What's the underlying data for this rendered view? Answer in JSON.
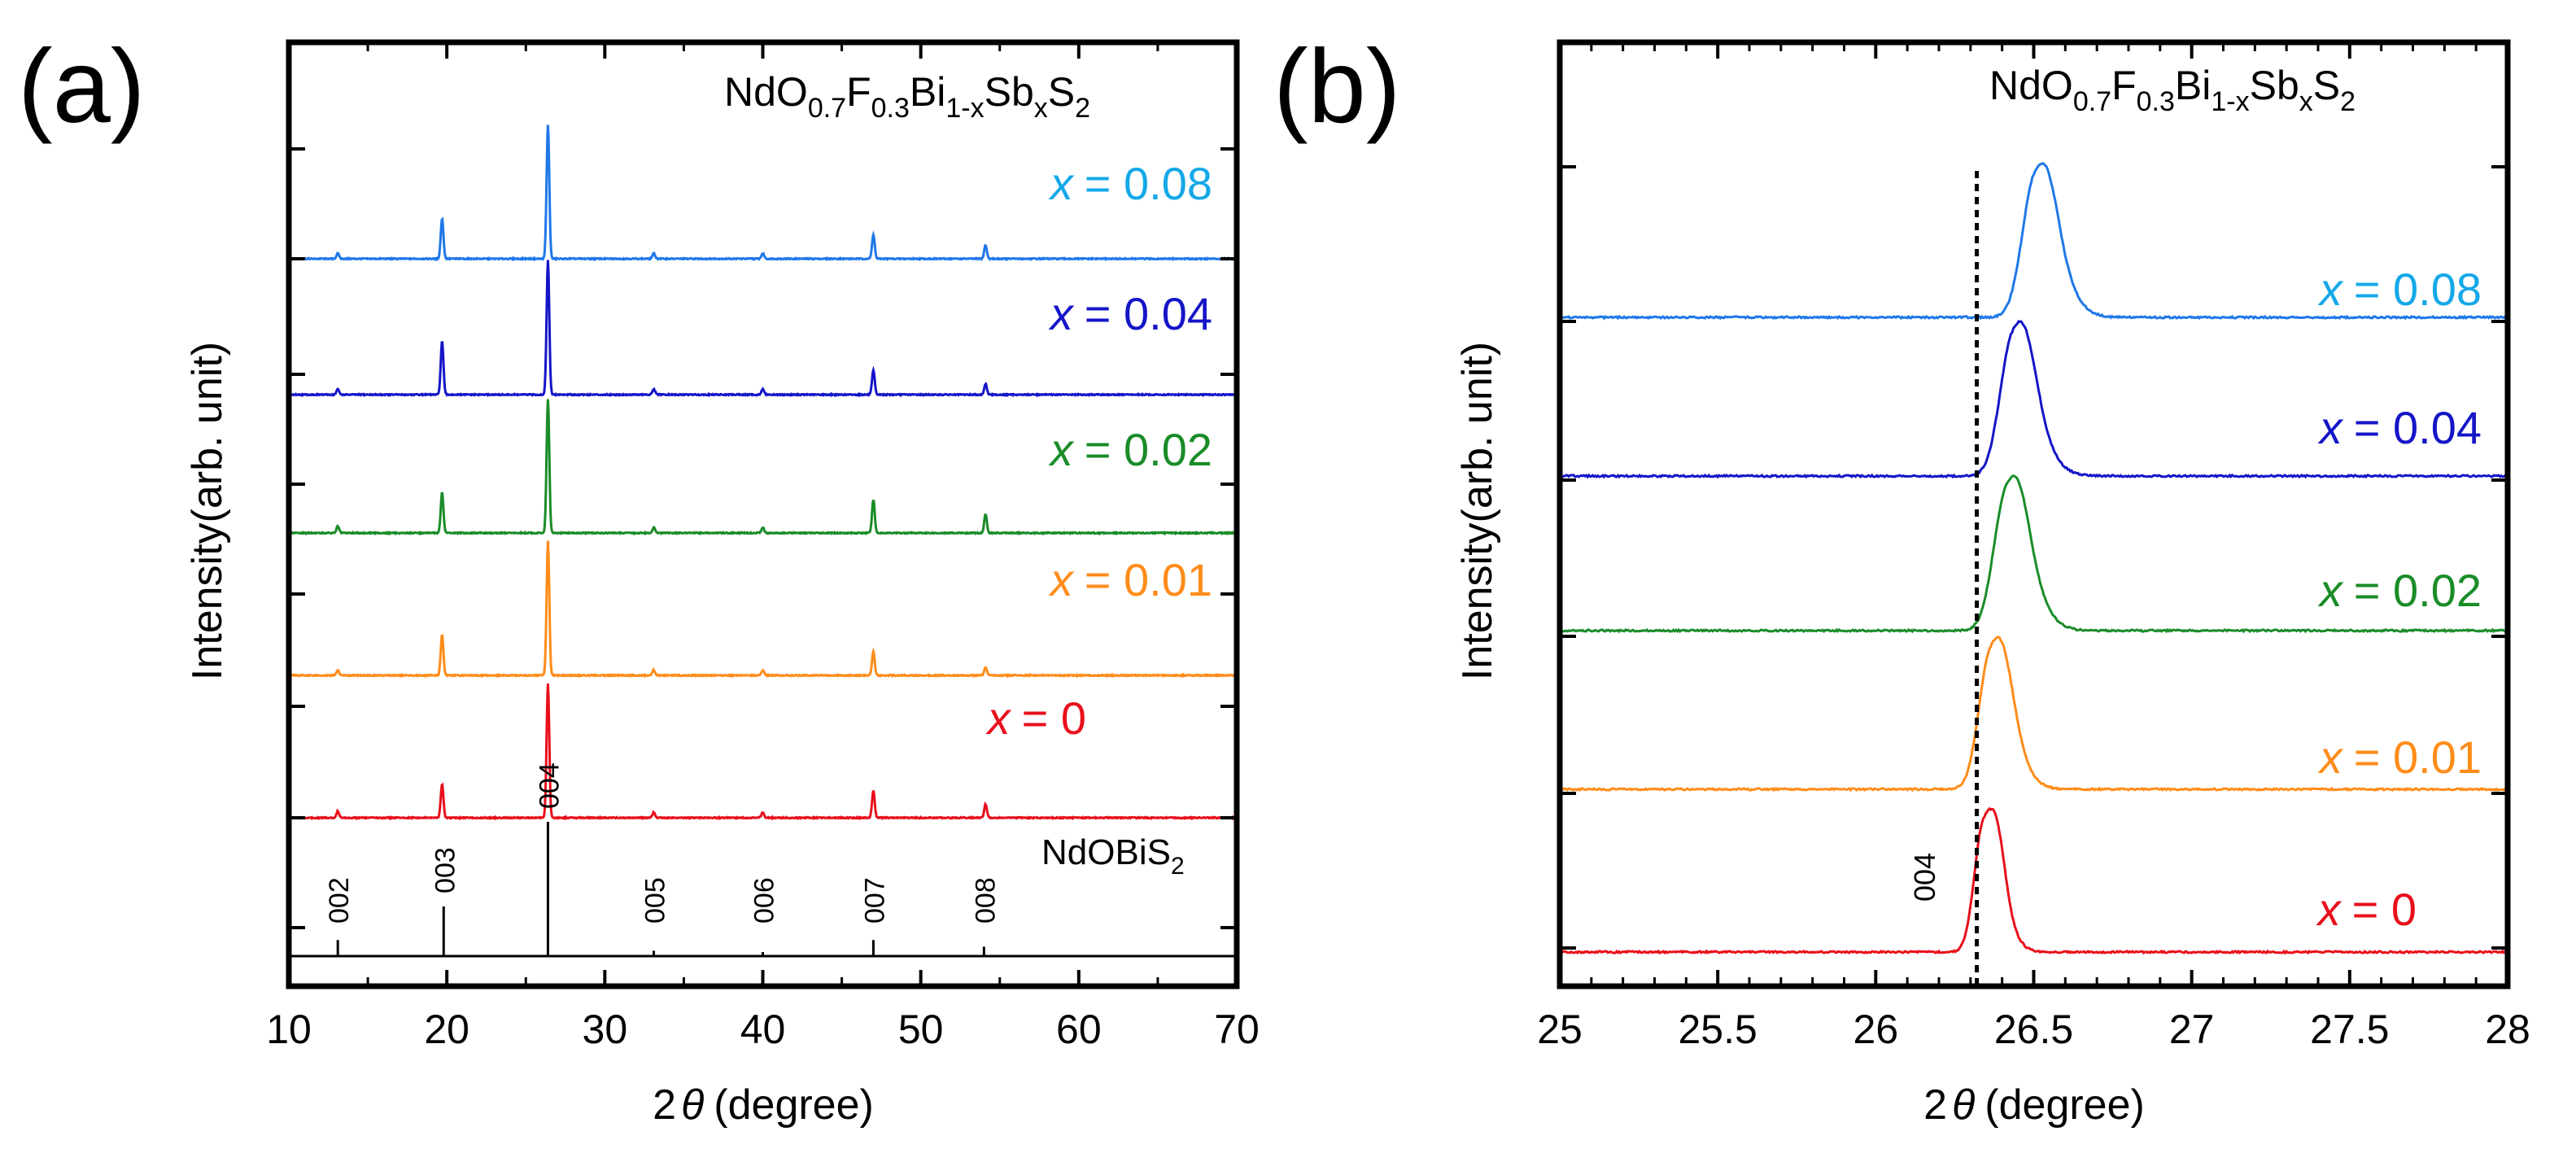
{
  "colors": {
    "axis": "#000000",
    "x0": "#e8101c",
    "x001": "#ff8c1a",
    "x002": "#1a8c28",
    "x004": "#1515c8",
    "x008": "#1f78e8",
    "label008": "#14a8e8",
    "reference": "#000000"
  },
  "chart_data": [
    {
      "panel": "(a)",
      "type": "line",
      "xlabel": "2θ (degree)",
      "xlabel_symbol": "θ",
      "ylabel": "Intensity(arb. unit)",
      "xlim": [
        10,
        70
      ],
      "xticks": [
        10,
        20,
        30,
        40,
        50,
        60,
        70
      ],
      "formula": {
        "base": "NdO",
        "s1": "0.7",
        "p2": "F",
        "s2": "0.3",
        "p3": "Bi",
        "s3": "1-x",
        "p4": "Sb",
        "s4": "x",
        "p5": "S",
        "s5": "2"
      },
      "series": [
        {
          "name": "x = 0.08",
          "var": "x",
          "value": "= 0.08",
          "color_key": "x008",
          "peaks": [
            [
              13.1,
              0.04
            ],
            [
              19.7,
              0.3
            ],
            [
              26.4,
              1.0
            ],
            [
              33.1,
              0.04
            ],
            [
              40.0,
              0.04
            ],
            [
              47.0,
              0.18
            ],
            [
              54.1,
              0.1
            ]
          ]
        },
        {
          "name": "x = 0.04",
          "var": "x",
          "value": "= 0.04",
          "color_key": "x004",
          "peaks": [
            [
              13.1,
              0.04
            ],
            [
              19.7,
              0.4
            ],
            [
              26.4,
              1.0
            ],
            [
              33.1,
              0.04
            ],
            [
              40.0,
              0.04
            ],
            [
              47.0,
              0.18
            ],
            [
              54.1,
              0.08
            ]
          ]
        },
        {
          "name": "x = 0.02",
          "var": "x",
          "value": "= 0.02",
          "color_key": "x002",
          "peaks": [
            [
              13.1,
              0.05
            ],
            [
              19.7,
              0.3
            ],
            [
              26.4,
              1.0
            ],
            [
              33.1,
              0.04
            ],
            [
              40.0,
              0.04
            ],
            [
              47.0,
              0.25
            ],
            [
              54.1,
              0.14
            ]
          ]
        },
        {
          "name": "x = 0.01",
          "var": "x",
          "value": "= 0.01",
          "color_key": "x001",
          "peaks": [
            [
              13.1,
              0.04
            ],
            [
              19.7,
              0.3
            ],
            [
              26.4,
              1.0
            ],
            [
              33.1,
              0.04
            ],
            [
              40.0,
              0.04
            ],
            [
              47.0,
              0.18
            ],
            [
              54.1,
              0.06
            ]
          ]
        },
        {
          "name": "x = 0",
          "var": "x",
          "value": "= 0",
          "color_key": "x0",
          "peaks": [
            [
              13.1,
              0.05
            ],
            [
              19.7,
              0.25
            ],
            [
              26.4,
              1.0
            ],
            [
              33.1,
              0.04
            ],
            [
              40.0,
              0.04
            ],
            [
              47.0,
              0.2
            ],
            [
              54.1,
              0.1
            ]
          ]
        }
      ],
      "reference": {
        "name": "NdOBiS2",
        "label_base": "NdOBiS",
        "label_sub": "2",
        "sticks": [
          {
            "x": 13.1,
            "h": 0.12,
            "label": "002"
          },
          {
            "x": 19.8,
            "h": 0.37,
            "label": "003"
          },
          {
            "x": 26.4,
            "h": 1.0,
            "label": "004"
          },
          {
            "x": 33.1,
            "h": 0.04,
            "label": "005"
          },
          {
            "x": 40.0,
            "h": 0.03,
            "label": "006"
          },
          {
            "x": 47.0,
            "h": 0.12,
            "label": "007"
          },
          {
            "x": 54.0,
            "h": 0.07,
            "label": "008"
          }
        ]
      }
    },
    {
      "panel": "(b)",
      "type": "line",
      "xlabel": "2θ (degree)",
      "xlabel_symbol": "θ",
      "ylabel": "Intensity(arb. unit)",
      "xlim": [
        25,
        28
      ],
      "xticks": [
        25,
        25.5,
        26,
        26.5,
        27,
        27.5,
        28
      ],
      "formula": {
        "base": "NdO",
        "s1": "0.7",
        "p2": "F",
        "s2": "0.3",
        "p3": "Bi",
        "s3": "1-x",
        "p4": "Sb",
        "s4": "x",
        "p5": "S",
        "s5": "2"
      },
      "reference_line_x": 26.32,
      "peak_label": "004",
      "series": [
        {
          "name": "x = 0.08",
          "var": "x",
          "value": "= 0.08",
          "color_key": "x008",
          "peak_center": 26.5,
          "width": 0.055
        },
        {
          "name": "x = 0.04",
          "var": "x",
          "value": "= 0.04",
          "color_key": "x004",
          "peak_center": 26.43,
          "width": 0.055
        },
        {
          "name": "x = 0.02",
          "var": "x",
          "value": "= 0.02",
          "color_key": "x002",
          "peak_center": 26.41,
          "width": 0.055
        },
        {
          "name": "x = 0.01",
          "var": "x",
          "value": "= 0.01",
          "color_key": "x001",
          "peak_center": 26.36,
          "width": 0.05
        },
        {
          "name": "x = 0",
          "var": "x",
          "value": "= 0",
          "color_key": "x0",
          "peak_center": 26.34,
          "width": 0.04
        }
      ]
    }
  ]
}
